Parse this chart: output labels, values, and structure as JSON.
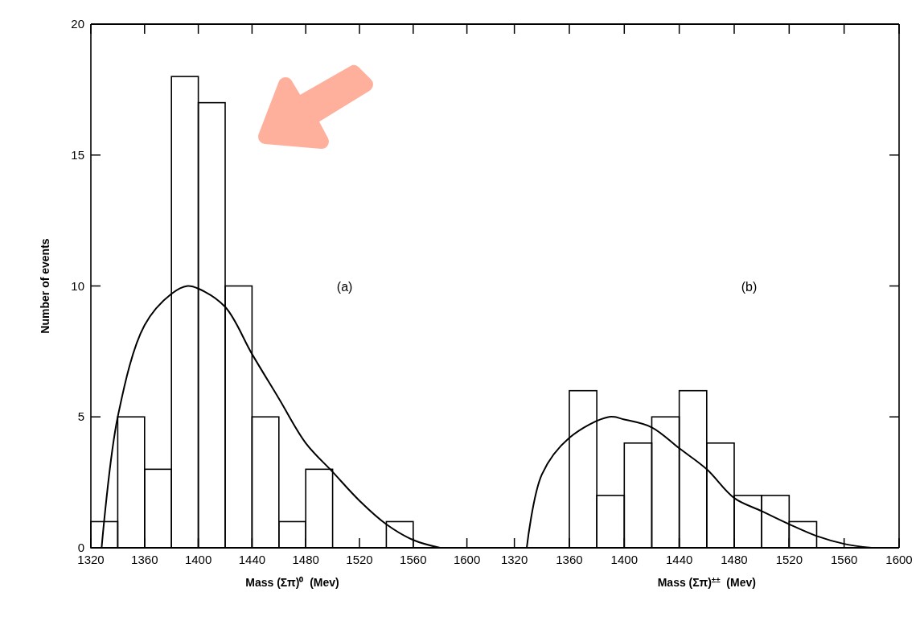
{
  "chart_data": [
    {
      "type": "histogram",
      "ylabel": "Number of events",
      "xlabel": "Mass (Σπ)⁰  (Mev)",
      "annotations": [
        "(a)"
      ],
      "xlim": [
        1320,
        1620
      ],
      "xticks": [
        1320,
        1360,
        1400,
        1440,
        1480,
        1520,
        1560,
        1600
      ],
      "ylim": [
        0,
        20
      ],
      "yticks": [
        0,
        5,
        10,
        15,
        20
      ],
      "grid": false,
      "series": [
        {
          "type": "histogram",
          "color": "#000000",
          "bins": [
            1320,
            1340,
            1360,
            1380,
            1400,
            1420,
            1440,
            1460,
            1480,
            1500,
            1520,
            1540,
            1560
          ],
          "values": [
            1,
            5,
            3,
            18,
            17,
            10,
            5,
            1,
            3,
            0,
            0,
            1
          ]
        },
        {
          "type": "line",
          "color": "#000000",
          "x": [
            1328,
            1340,
            1360,
            1380,
            1392,
            1400,
            1420,
            1440,
            1460,
            1480,
            1500,
            1520,
            1540,
            1560,
            1580
          ],
          "values": [
            0,
            5,
            8.5,
            9.7,
            10,
            9.9,
            9.2,
            7.4,
            5.7,
            4.0,
            2.9,
            1.8,
            0.9,
            0.3,
            0
          ]
        }
      ]
    },
    {
      "type": "histogram",
      "xlabel": "Mass (Σπ)$^{±±}$  (Mev)",
      "annotations": [
        "(b)"
      ],
      "xlim": [
        1305,
        1600
      ],
      "xticks": [
        1320,
        1360,
        1400,
        1440,
        1480,
        1520,
        1560,
        1600
      ],
      "ylim": [
        0,
        20
      ],
      "yticks": [
        0,
        5,
        10,
        15,
        20
      ],
      "tick_labels": "x",
      "grid": false,
      "series": [
        {
          "type": "histogram",
          "color": "#000000",
          "bins": [
            1360,
            1380,
            1400,
            1420,
            1440,
            1460,
            1480,
            1500,
            1520,
            1540
          ],
          "values": [
            6,
            2,
            4,
            5,
            6,
            4,
            2,
            2,
            1
          ]
        },
        {
          "type": "line",
          "color": "#000000",
          "x": [
            1329,
            1340,
            1360,
            1389,
            1400,
            1420,
            1440,
            1460,
            1480,
            1500,
            1520,
            1540,
            1560,
            1580
          ],
          "values": [
            0,
            2.8,
            4.2,
            5,
            4.9,
            4.6,
            3.8,
            3.0,
            1.9,
            1.4,
            0.9,
            0.45,
            0.15,
            0
          ]
        }
      ]
    }
  ]
}
